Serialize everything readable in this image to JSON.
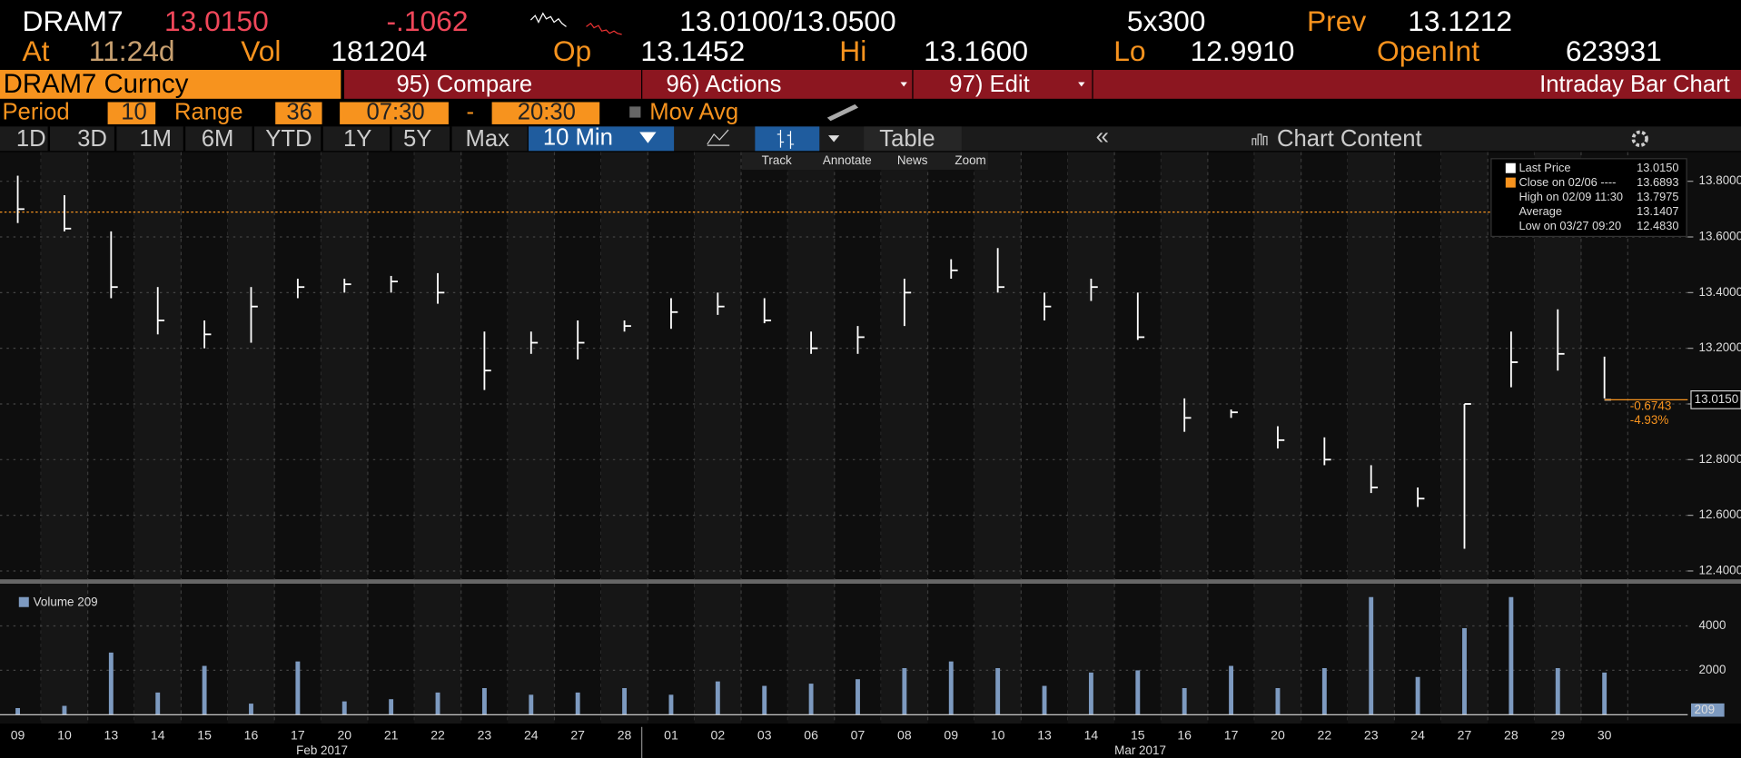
{
  "header": {
    "ticker": "DRAM7",
    "last": "13.0150",
    "change": "-.1062",
    "bid_ask": "13.0100/13.0500",
    "size": "5x300",
    "prev_label": "Prev",
    "prev": "13.1212",
    "at_label": "At",
    "time": "11:24d",
    "vol_label": "Vol",
    "vol": "181204",
    "op_label": "Op",
    "op": "13.1452",
    "hi_label": "Hi",
    "hi": "13.1600",
    "lo_label": "Lo",
    "lo": "12.9910",
    "openint_label": "OpenInt",
    "openint": "623931"
  },
  "menu": {
    "security": "DRAM7 Curncy",
    "compare": "95) Compare",
    "actions": "96) Actions",
    "edit": "97) Edit",
    "title": "Intraday Bar Chart"
  },
  "settings": {
    "period_label": "Period",
    "period": "10",
    "range_label": "Range",
    "range": "36",
    "start": "07:30",
    "dash": "-",
    "end": "20:30",
    "mov_avg": "Mov Avg"
  },
  "tabs": [
    "1D",
    "3D",
    "1M",
    "6M",
    "YTD",
    "1Y",
    "5Y",
    "Max"
  ],
  "interval": "10 Min",
  "table": "Table",
  "chart_content": "Chart Content",
  "tools": [
    "Track",
    "Annotate",
    "News",
    "Zoom"
  ],
  "months": [
    "Feb 2017",
    "Mar 2017"
  ],
  "chart_data": [
    {
      "type": "range-bar",
      "color": "#ffffff",
      "categories": [
        "09",
        "10",
        "13",
        "14",
        "15",
        "16",
        "17",
        "20",
        "21",
        "22",
        "23",
        "24",
        "27",
        "28",
        "01",
        "02",
        "03",
        "06",
        "07",
        "08",
        "09",
        "10",
        "13",
        "14",
        "15",
        "16",
        "17",
        "20",
        "22",
        "23",
        "24",
        "27",
        "28",
        "29",
        "30"
      ],
      "low": [
        13.65,
        13.62,
        13.38,
        13.25,
        13.2,
        13.22,
        13.38,
        13.4,
        13.4,
        13.36,
        13.05,
        13.18,
        13.16,
        13.26,
        13.27,
        13.32,
        13.29,
        13.18,
        13.18,
        13.28,
        13.45,
        13.4,
        13.3,
        13.37,
        13.23,
        12.9,
        12.95,
        12.84,
        12.78,
        12.68,
        12.63,
        12.48,
        13.06,
        13.12,
        13.02
      ],
      "high": [
        13.82,
        13.75,
        13.62,
        13.42,
        13.3,
        13.42,
        13.45,
        13.45,
        13.46,
        13.47,
        13.26,
        13.26,
        13.3,
        13.3,
        13.38,
        13.4,
        13.38,
        13.26,
        13.28,
        13.45,
        13.52,
        13.56,
        13.4,
        13.45,
        13.4,
        13.02,
        12.98,
        12.92,
        12.88,
        12.78,
        12.7,
        13.0,
        13.26,
        13.34,
        13.17
      ],
      "close": [
        13.7,
        13.63,
        13.42,
        13.3,
        13.25,
        13.35,
        13.42,
        13.43,
        13.44,
        13.4,
        13.12,
        13.22,
        13.22,
        13.28,
        13.33,
        13.35,
        13.3,
        13.2,
        13.24,
        13.4,
        13.48,
        13.42,
        13.35,
        13.42,
        13.24,
        12.95,
        12.97,
        12.87,
        12.8,
        12.7,
        12.66,
        13.0,
        13.15,
        13.18,
        13.015
      ],
      "ylim": [
        12.37,
        13.905
      ],
      "yticks": [
        {
          "value": 12.4,
          "label": "12.4000"
        },
        {
          "value": 12.6,
          "label": "12.6000"
        },
        {
          "value": 12.8,
          "label": "12.8000"
        },
        {
          "value": 13.0,
          "label": "13.0000"
        },
        {
          "value": 13.2,
          "label": "13.2000"
        },
        {
          "value": 13.4,
          "label": "13.4000"
        },
        {
          "value": 13.6,
          "label": "13.6000"
        },
        {
          "value": 13.8,
          "label": "13.8000"
        }
      ],
      "grid": true,
      "close_line": 13.6893,
      "close_line_color": "#f7931e",
      "last": {
        "value": 13.015,
        "label": "13.0150"
      },
      "last_change": "-0.6743",
      "last_pct": "-4.93%",
      "legend": [
        {
          "label": "Last Price",
          "value": "13.0150"
        },
        {
          "label": "Close on 02/06 ----",
          "value": "13.6893"
        },
        {
          "label": "High on 02/09 11:30",
          "value": "13.7975"
        },
        {
          "label": "Average",
          "value": "13.1407"
        },
        {
          "label": "Low on 03/27 09:20",
          "value": "12.4830"
        }
      ]
    },
    {
      "type": "bar",
      "legend": "Volume 209",
      "color": "#7d9ac0",
      "values": [
        300,
        400,
        2800,
        1000,
        2200,
        500,
        2400,
        600,
        700,
        1000,
        1200,
        900,
        1000,
        1200,
        900,
        1500,
        1300,
        1400,
        1600,
        2100,
        2400,
        2100,
        1300,
        1900,
        2000,
        1200,
        2200,
        1200,
        2100,
        5300,
        1700,
        3900,
        5300,
        2100,
        1900
      ],
      "last": {
        "value": 209,
        "label": "209"
      },
      "ylim": [
        0,
        5600
      ],
      "yticks": [
        2000,
        4000
      ],
      "grid": true
    }
  ]
}
